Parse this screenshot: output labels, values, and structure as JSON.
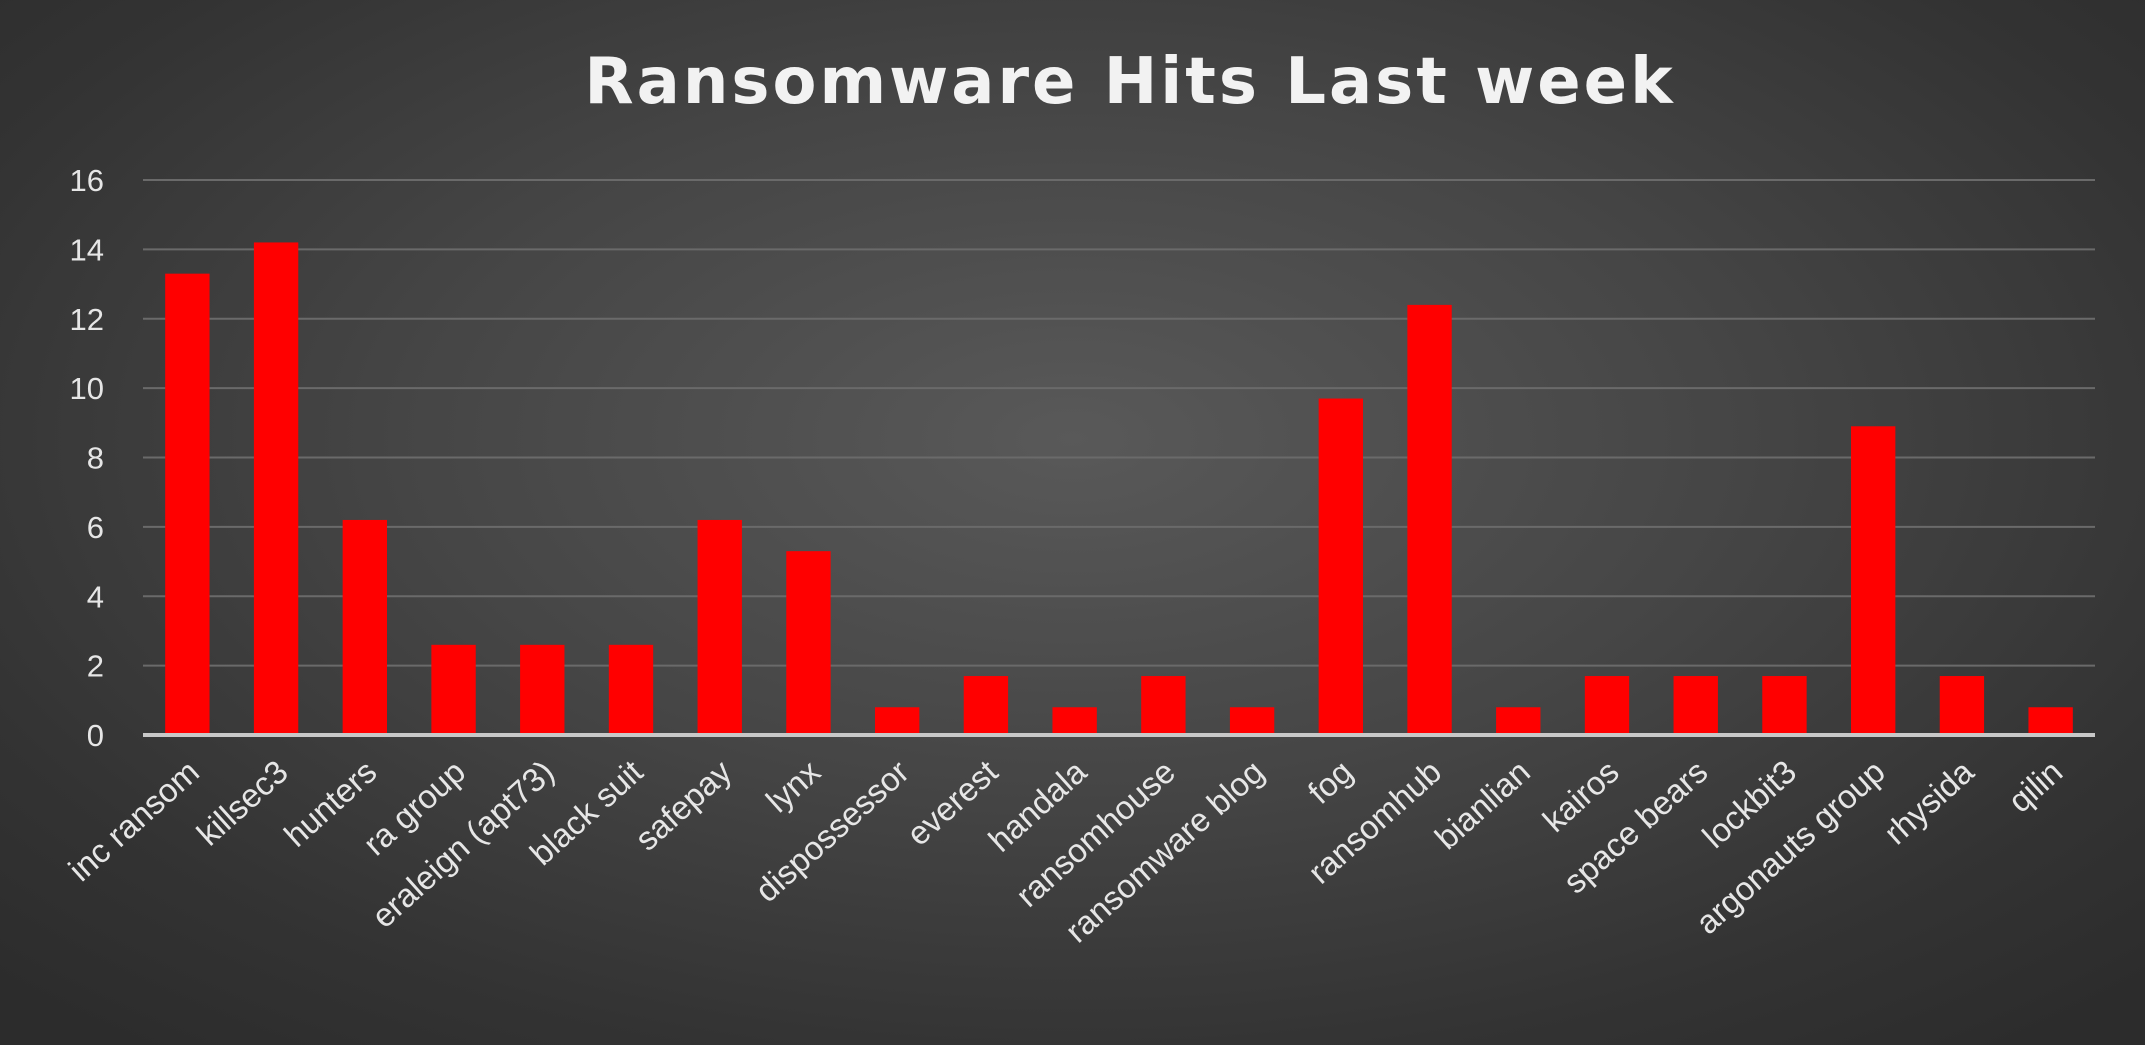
{
  "chart_data": {
    "type": "bar",
    "title": "Ransomware Hits Last week",
    "xlabel": "",
    "ylabel": "",
    "ylim": [
      0,
      16
    ],
    "yticks": [
      0,
      2,
      4,
      6,
      8,
      10,
      12,
      14,
      16
    ],
    "grid": true,
    "legend": "none",
    "bar_color": "#ff0000",
    "background_color": "#404040",
    "text_color": "#e6e6e6",
    "categories": [
      "inc ransom",
      "killsec3",
      "hunters",
      "ra group",
      "eraleign (apt73)",
      "black suit",
      "safepay",
      "lynx",
      "dispossessor",
      "everest",
      "handala",
      "ransomhouse",
      "ransomware blog",
      "fog",
      "ransomhub",
      "bianlian",
      "kairos",
      "space bears",
      "lockbit3",
      "argonauts group",
      "rhysida",
      "qilin"
    ],
    "values": [
      13.3,
      14.2,
      6.2,
      2.6,
      2.6,
      2.6,
      6.2,
      5.3,
      0.8,
      1.7,
      0.8,
      1.7,
      0.8,
      9.7,
      12.4,
      0.8,
      1.7,
      1.7,
      1.7,
      8.9,
      1.7,
      0.8
    ]
  }
}
